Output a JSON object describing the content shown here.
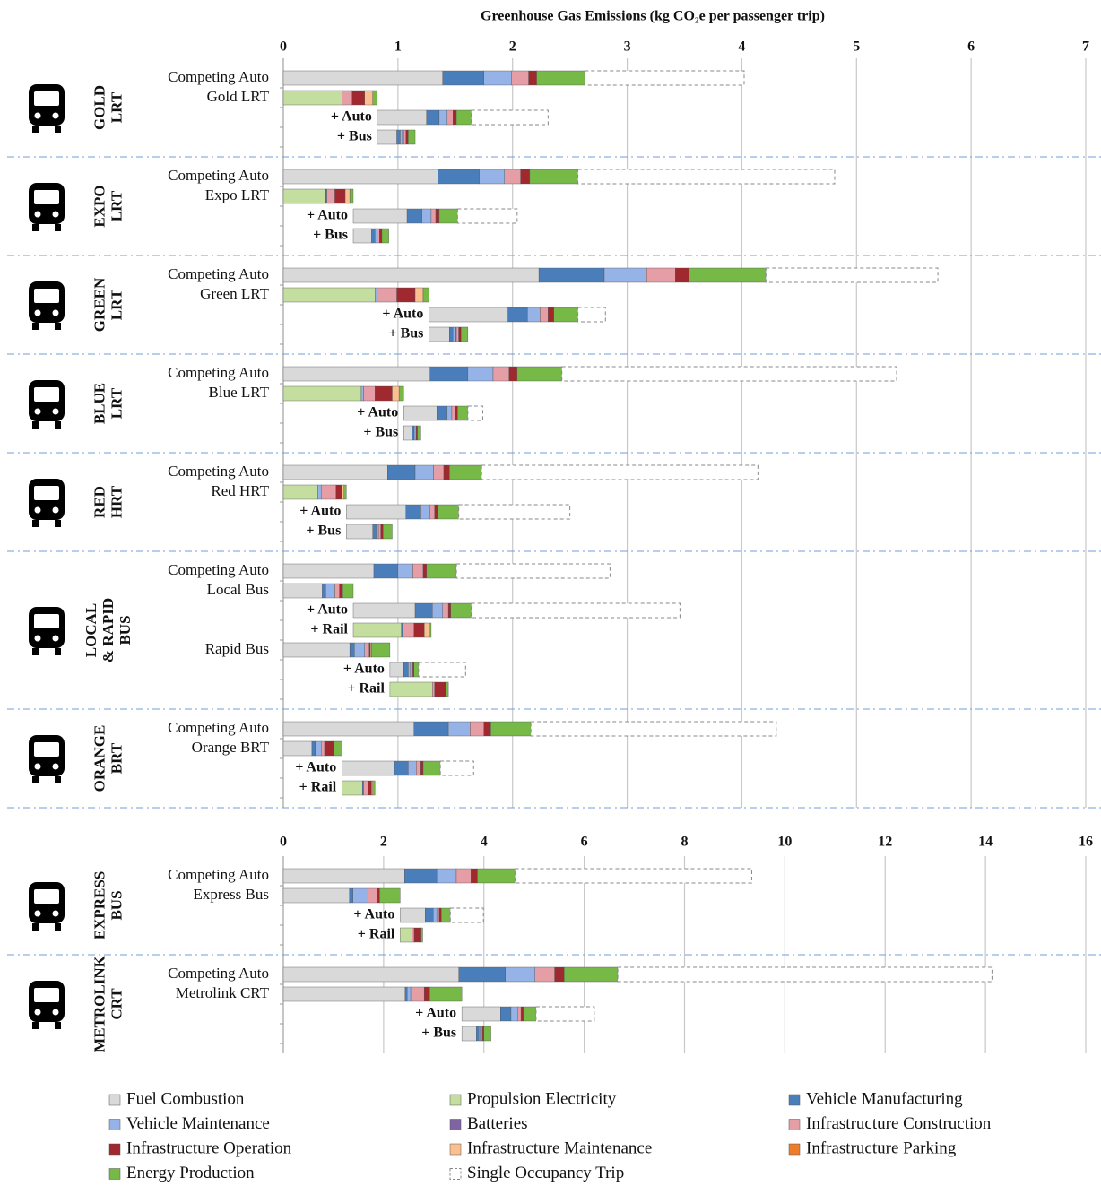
{
  "chart_data": [
    {
      "type": "bar",
      "title": "Greenhouse Gas Emissions (kg CO₂e per passenger trip)",
      "xlim": [
        0,
        7
      ],
      "xticks": [
        0,
        1,
        2,
        3,
        4,
        5,
        6,
        7
      ],
      "grid": true,
      "series": [
        {
          "name": "Fuel Combustion",
          "color": "#d9d9d9"
        },
        {
          "name": "Propulsion Electricity",
          "color": "#c3de9e"
        },
        {
          "name": "Vehicle Manufacturing",
          "color": "#4a7ebb"
        },
        {
          "name": "Vehicle Maintenance",
          "color": "#95b3e6"
        },
        {
          "name": "Batteries",
          "color": "#7f64a4"
        },
        {
          "name": "Infrastructure Construction",
          "color": "#e59ea6"
        },
        {
          "name": "Infrastructure Operation",
          "color": "#a0282f"
        },
        {
          "name": "Infrastructure Maintenance",
          "color": "#fac08f"
        },
        {
          "name": "Infrastructure Parking",
          "color": "#ee7d2a"
        },
        {
          "name": "Energy Production",
          "color": "#76b947"
        },
        {
          "name": "Single Occupancy Trip",
          "color": "#ffffff",
          "style": "dashed"
        }
      ],
      "groups": [
        {
          "label": [
            "GOLD",
            "LRT"
          ],
          "rows": [
            {
              "label": "Competing Auto",
              "values": [
                1.39,
                null,
                0.36,
                0.24,
                null,
                0.15,
                0.07,
                null,
                null,
                0.42,
                1.39
              ]
            },
            {
              "label": "Gold LRT",
              "values": [
                null,
                0.51,
                null,
                null,
                null,
                0.09,
                0.11,
                0.07,
                null,
                0.04,
                null
              ]
            },
            {
              "label": "+ Auto",
              "values": [
                0.43,
                null,
                0.11,
                0.07,
                null,
                0.05,
                0.03,
                null,
                null,
                0.13,
                0.67
              ]
            },
            {
              "label": "+ Bus",
              "values": [
                0.17,
                null,
                0.03,
                0.02,
                0.01,
                0.02,
                0.02,
                null,
                null,
                0.06,
                null
              ]
            }
          ]
        },
        {
          "label": [
            "EXPO",
            "LRT"
          ],
          "rows": [
            {
              "label": "Competing Auto",
              "values": [
                1.35,
                null,
                0.36,
                0.22,
                null,
                0.14,
                0.08,
                null,
                null,
                0.42,
                2.24
              ]
            },
            {
              "label": "Expo LRT",
              "values": [
                null,
                0.37,
                0.01,
                null,
                null,
                0.07,
                0.09,
                0.04,
                null,
                0.03,
                null
              ]
            },
            {
              "label": "+ Auto",
              "values": [
                0.47,
                null,
                0.13,
                0.08,
                null,
                0.04,
                0.03,
                null,
                null,
                0.16,
                0.52
              ]
            },
            {
              "label": "+ Bus",
              "values": [
                0.16,
                null,
                0.03,
                0.02,
                null,
                0.02,
                0.02,
                null,
                null,
                0.06,
                null
              ]
            }
          ]
        },
        {
          "label": [
            "GREEN",
            "LRT"
          ],
          "rows": [
            {
              "label": "Competing Auto",
              "values": [
                2.23,
                null,
                0.57,
                0.37,
                null,
                0.25,
                0.12,
                null,
                null,
                0.67,
                1.5
              ]
            },
            {
              "label": "Green LRT",
              "values": [
                null,
                0.8,
                null,
                0.02,
                null,
                0.17,
                0.16,
                0.07,
                null,
                0.05,
                null
              ]
            },
            {
              "label": "+ Auto",
              "values": [
                0.69,
                null,
                0.17,
                0.11,
                null,
                0.07,
                0.05,
                null,
                null,
                0.21,
                0.24
              ]
            },
            {
              "label": "+ Bus",
              "values": [
                0.18,
                null,
                0.03,
                0.02,
                0.01,
                0.02,
                0.02,
                null,
                null,
                0.06,
                null
              ]
            }
          ]
        },
        {
          "label": [
            "BLUE",
            "LRT"
          ],
          "rows": [
            {
              "label": "Competing Auto",
              "values": [
                1.28,
                null,
                0.33,
                0.22,
                null,
                0.14,
                0.07,
                null,
                null,
                0.39,
                2.92
              ]
            },
            {
              "label": "Blue LRT",
              "values": [
                null,
                0.68,
                null,
                0.02,
                null,
                0.1,
                0.15,
                0.06,
                null,
                0.04,
                null
              ]
            },
            {
              "label": "+ Auto",
              "values": [
                0.29,
                null,
                0.09,
                0.04,
                null,
                0.03,
                0.02,
                null,
                null,
                0.09,
                0.13
              ]
            },
            {
              "label": "+ Bus",
              "values": [
                0.07,
                null,
                0.02,
                0.01,
                null,
                0.01,
                0.01,
                null,
                null,
                0.03,
                null
              ]
            }
          ]
        },
        {
          "label": [
            "RED",
            "HRT"
          ],
          "rows": [
            {
              "label": "Competing Auto",
              "values": [
                0.91,
                null,
                0.24,
                0.16,
                null,
                0.09,
                0.05,
                null,
                null,
                0.28,
                2.41
              ]
            },
            {
              "label": "Red HRT",
              "values": [
                null,
                0.3,
                null,
                0.03,
                null,
                0.13,
                0.05,
                0.02,
                null,
                0.02,
                null
              ]
            },
            {
              "label": "+ Auto",
              "values": [
                0.52,
                null,
                0.13,
                0.08,
                null,
                0.04,
                0.03,
                null,
                null,
                0.18,
                0.97
              ]
            },
            {
              "label": "+ Bus",
              "values": [
                0.23,
                null,
                0.03,
                0.02,
                null,
                0.02,
                0.02,
                null,
                null,
                0.08,
                null
              ]
            }
          ]
        },
        {
          "label": [
            "LOCAL",
            "& RAPID",
            "BUS"
          ],
          "rows": [
            {
              "label": "Competing Auto",
              "values": [
                0.79,
                null,
                0.21,
                0.13,
                null,
                0.09,
                0.03,
                null,
                null,
                0.26,
                1.34
              ]
            },
            {
              "label": "Local Bus",
              "values": [
                0.34,
                null,
                0.03,
                0.08,
                null,
                0.04,
                0.02,
                0.01,
                null,
                0.09,
                null
              ]
            },
            {
              "label": "+ Auto",
              "values": [
                0.54,
                null,
                0.15,
                0.09,
                null,
                0.05,
                0.02,
                null,
                null,
                0.18,
                1.82
              ]
            },
            {
              "label": "+ Rail",
              "values": [
                null,
                0.42,
                0.01,
                null,
                null,
                0.1,
                0.09,
                0.04,
                null,
                0.02,
                null
              ]
            },
            {
              "label": "Rapid Bus",
              "values": [
                0.58,
                null,
                0.04,
                0.09,
                null,
                0.04,
                0.01,
                0.01,
                null,
                0.16,
                null
              ]
            },
            {
              "label": "+ Auto",
              "values": [
                0.12,
                null,
                0.04,
                0.02,
                null,
                0.02,
                0.01,
                null,
                null,
                0.04,
                0.41
              ]
            },
            {
              "label": "+ Rail",
              "values": [
                null,
                0.37,
                null,
                null,
                null,
                0.02,
                0.1,
                null,
                null,
                0.02,
                null
              ]
            }
          ]
        },
        {
          "label": [
            "ORANGE",
            "BRT"
          ],
          "rows": [
            {
              "label": "Competing Auto",
              "values": [
                1.14,
                null,
                0.3,
                0.19,
                null,
                0.12,
                0.06,
                null,
                null,
                0.35,
                2.14
              ]
            },
            {
              "label": "Orange BRT",
              "values": [
                0.25,
                null,
                0.03,
                0.05,
                null,
                0.03,
                0.08,
                null,
                null,
                0.07,
                null
              ]
            },
            {
              "label": "+ Auto",
              "values": [
                0.46,
                null,
                0.12,
                0.07,
                null,
                0.04,
                0.02,
                null,
                null,
                0.15,
                0.29
              ]
            },
            {
              "label": "+ Rail",
              "values": [
                null,
                0.18,
                0.01,
                null,
                null,
                0.04,
                0.03,
                0.01,
                null,
                0.02,
                null
              ]
            }
          ]
        }
      ]
    },
    {
      "type": "bar",
      "xlim": [
        0,
        16
      ],
      "xticks": [
        0,
        2,
        4,
        6,
        8,
        10,
        12,
        14,
        16
      ],
      "grid": true,
      "groups": [
        {
          "label": [
            "EXPRESS",
            "BUS"
          ],
          "rows": [
            {
              "label": "Competing Auto",
              "values": [
                2.42,
                null,
                0.64,
                0.39,
                null,
                0.29,
                0.13,
                null,
                null,
                0.75,
                4.72
              ]
            },
            {
              "label": "Express Bus",
              "values": [
                1.32,
                null,
                0.07,
                0.3,
                null,
                0.18,
                0.05,
                null,
                null,
                0.41,
                null
              ]
            },
            {
              "label": "+ Auto",
              "values": [
                0.5,
                null,
                0.16,
                0.07,
                null,
                0.05,
                0.04,
                null,
                null,
                0.18,
                0.66
              ]
            },
            {
              "label": "+ Rail",
              "values": [
                null,
                0.23,
                null,
                null,
                null,
                0.05,
                0.14,
                null,
                null,
                0.03,
                null
              ]
            }
          ]
        },
        {
          "label": [
            "METROLINK",
            "CRT"
          ],
          "rows": [
            {
              "label": "Competing Auto",
              "values": [
                3.5,
                null,
                0.93,
                0.59,
                null,
                0.39,
                0.19,
                null,
                null,
                1.07,
                7.46
              ]
            },
            {
              "label": "Metrolink CRT",
              "values": [
                2.43,
                null,
                0.04,
                0.07,
                null,
                0.27,
                0.09,
                0.02,
                null,
                0.64,
                null
              ]
            },
            {
              "label": "+ Auto",
              "values": [
                0.77,
                null,
                0.21,
                0.13,
                null,
                0.07,
                0.05,
                null,
                null,
                0.25,
                1.16
              ]
            },
            {
              "label": "+ Bus",
              "values": [
                0.29,
                null,
                0.05,
                0.03,
                0.02,
                0.02,
                0.03,
                null,
                null,
                0.14,
                null
              ]
            }
          ]
        }
      ]
    }
  ]
}
